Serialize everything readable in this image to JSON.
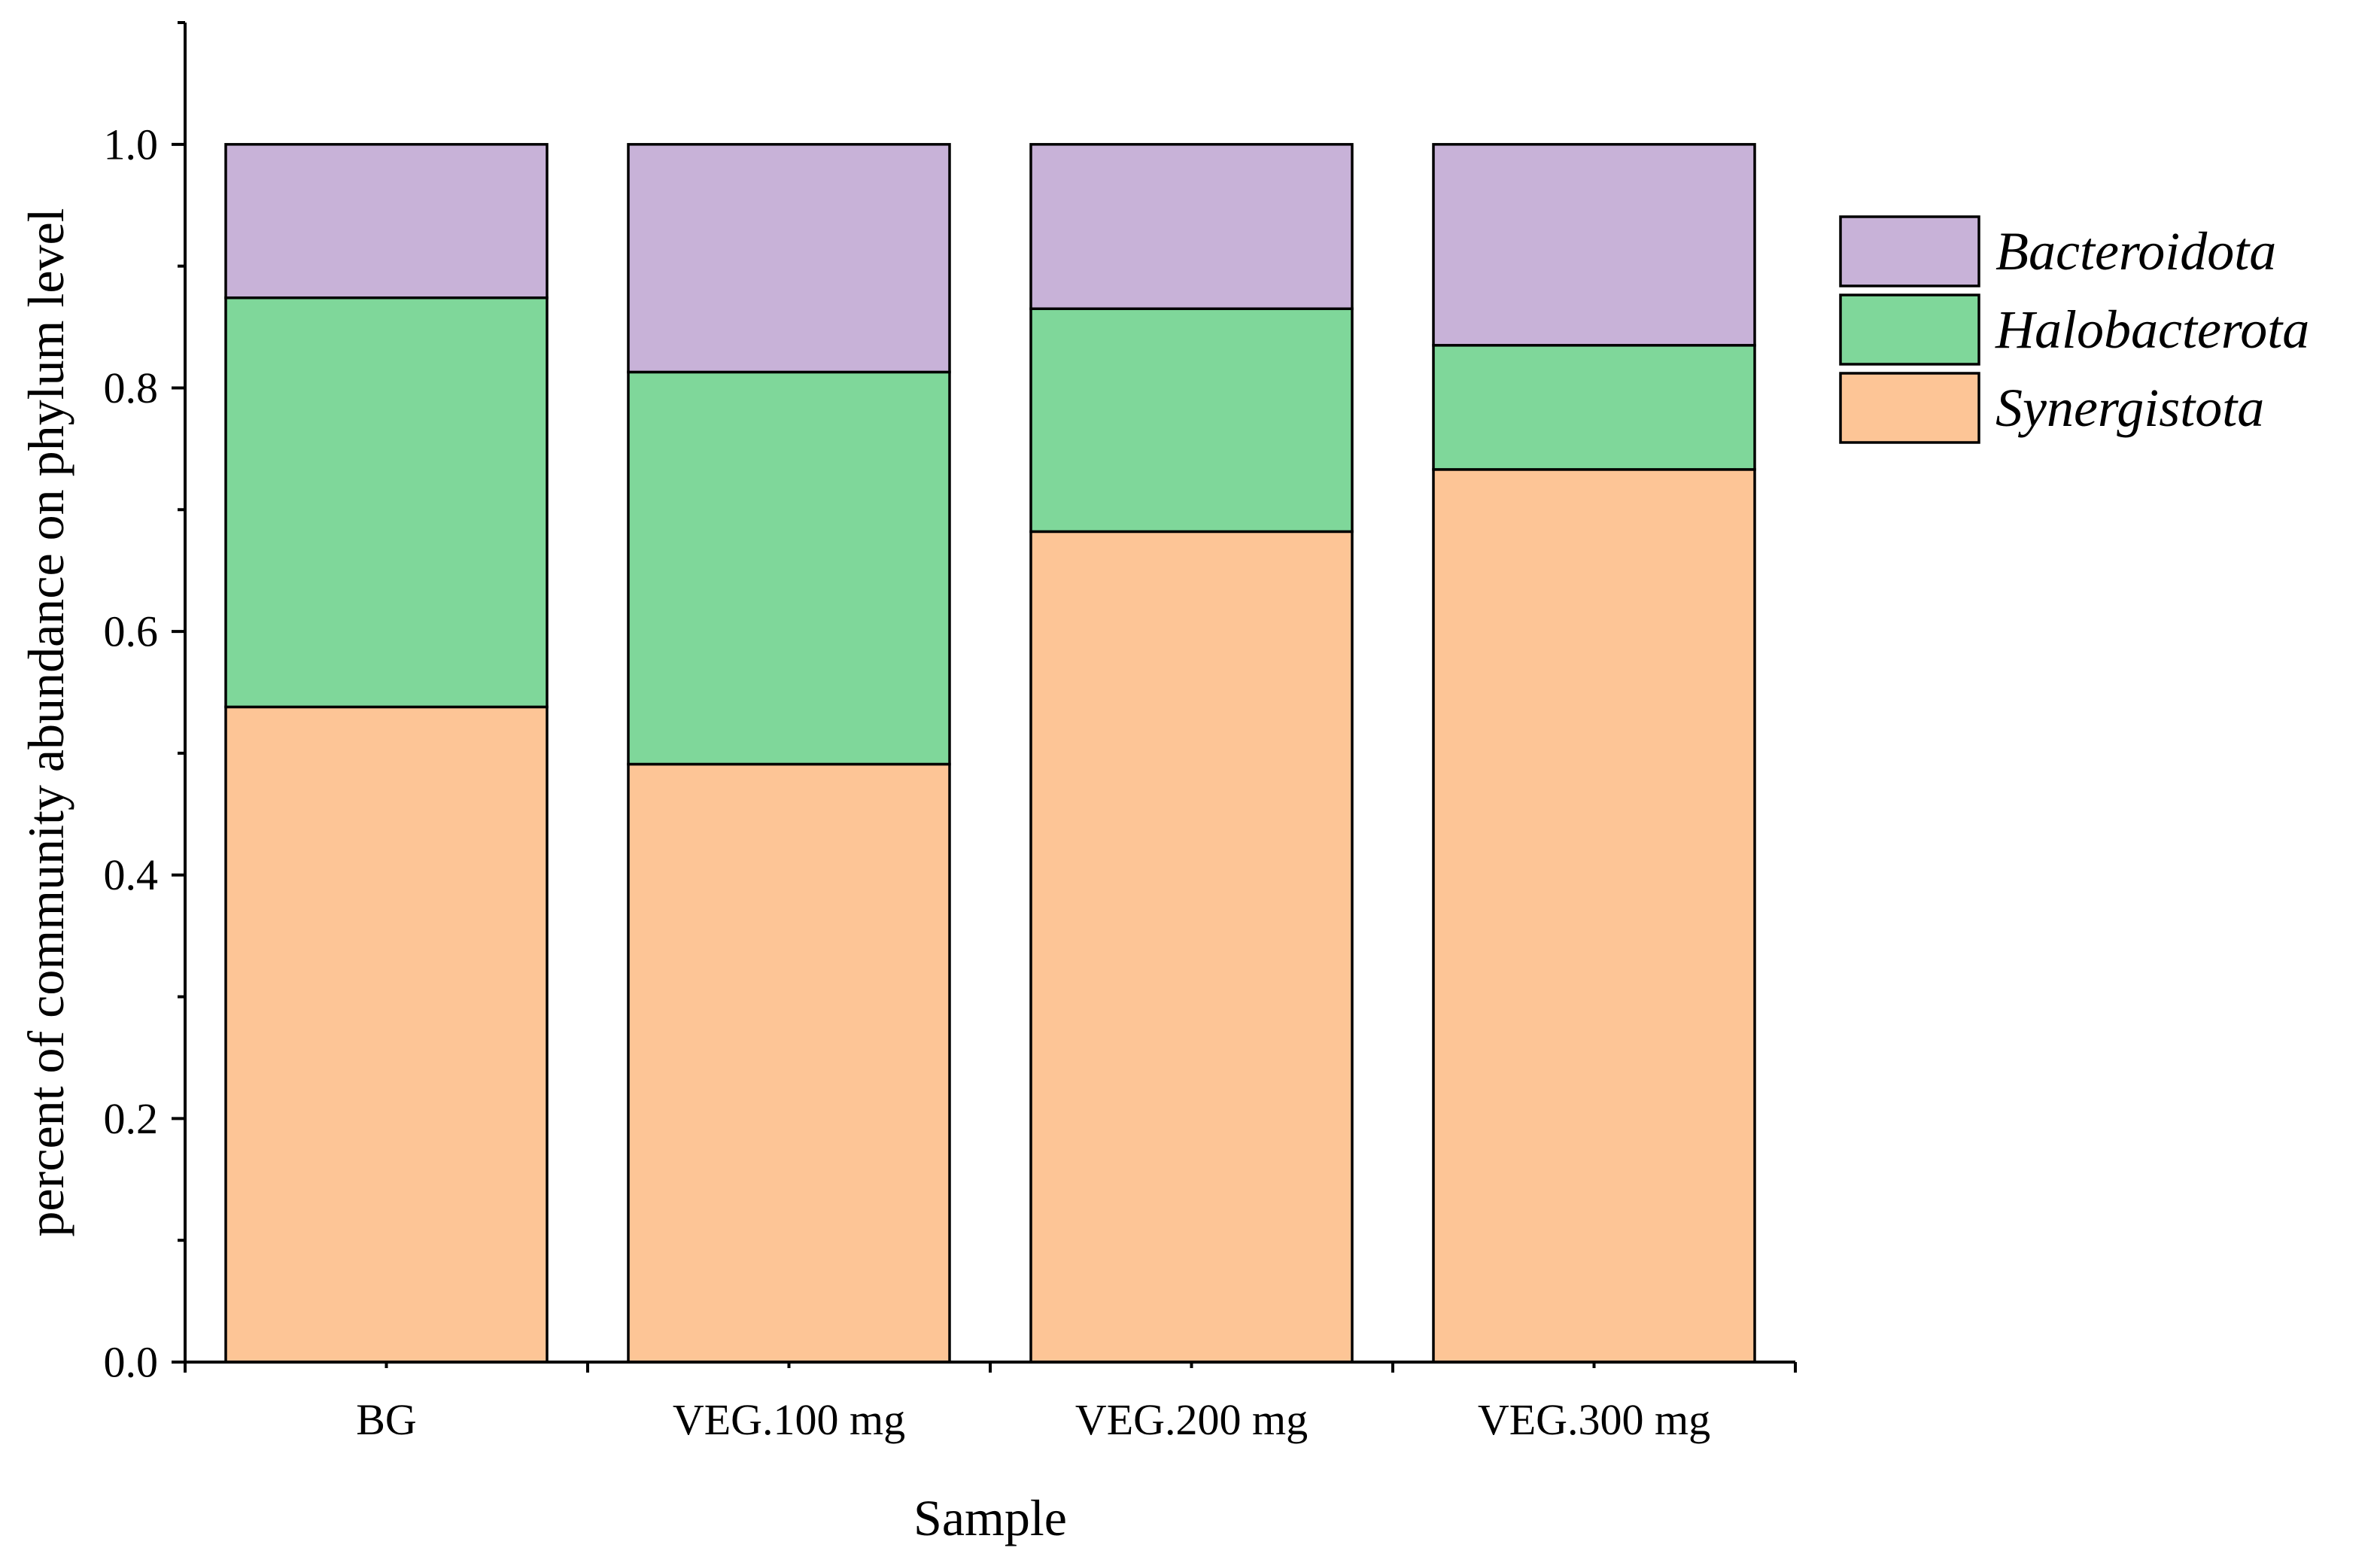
{
  "chart_data": {
    "type": "bar",
    "stacked": true,
    "title": "",
    "xlabel": "Sample",
    "ylabel": "percent of community abundance on phylum level",
    "ylim": [
      0,
      1.1
    ],
    "yticks": [
      0.0,
      0.2,
      0.4,
      0.6,
      0.8,
      1.0
    ],
    "ytick_labels": [
      "0.0",
      "0.2",
      "0.4",
      "0.6",
      "0.8",
      "1.0"
    ],
    "categories": [
      "BG",
      "VEG.100 mg",
      "VEG.200 mg",
      "VEG.300 mg"
    ],
    "series": [
      {
        "name": "Synergistota",
        "color": "#fdc596",
        "values": [
          0.538,
          0.491,
          0.682,
          0.733
        ]
      },
      {
        "name": "Halobacterota",
        "color": "#7fd79a",
        "values": [
          0.336,
          0.322,
          0.183,
          0.102
        ]
      },
      {
        "name": "Bacteroidota",
        "color": "#c8b2d8",
        "values": [
          0.126,
          0.187,
          0.135,
          0.165
        ]
      }
    ],
    "legend": {
      "placement": "right",
      "order": [
        "Bacteroidota",
        "Halobacterota",
        "Synergistota"
      ]
    },
    "grid": false
  }
}
